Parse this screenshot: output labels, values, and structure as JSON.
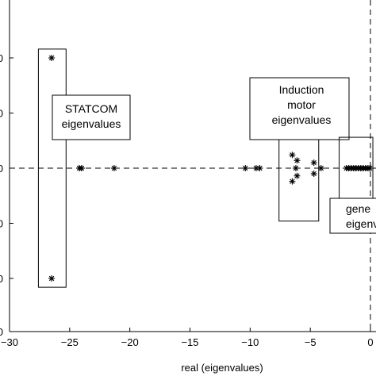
{
  "chart_data": {
    "type": "scatter",
    "title": "",
    "xlabel": "real (eigenvalues)",
    "ylabel": "",
    "xlim": [
      -30,
      0.2
    ],
    "ylim": [
      -1.3,
      1.3
    ],
    "x_ticks": [
      -30,
      -25,
      -20,
      -15,
      -10,
      -5,
      0
    ],
    "x_tick_labels": [
      "−30",
      "−25",
      "−20",
      "−15",
      "−10",
      "−5",
      "0"
    ],
    "y_ticks": [
      1.0,
      0.5,
      0.0,
      -0.5,
      -1.0
    ],
    "y_tick_labels": [
      "00",
      "00",
      "00",
      "00",
      "00"
    ],
    "marker": "asterisk",
    "grid": false,
    "reference_lines": {
      "horizontal_dashed_y": 0,
      "vertical_dashed_x": 0
    },
    "points": [
      {
        "x": -26.5,
        "y": 1.0
      },
      {
        "x": -26.5,
        "y": -1.0
      },
      {
        "x": -24.2,
        "y": 0
      },
      {
        "x": -24.0,
        "y": 0
      },
      {
        "x": -21.3,
        "y": 0
      },
      {
        "x": -10.4,
        "y": 0
      },
      {
        "x": -9.5,
        "y": 0
      },
      {
        "x": -9.2,
        "y": 0
      },
      {
        "x": -6.5,
        "y": 0.12
      },
      {
        "x": -6.1,
        "y": 0.07
      },
      {
        "x": -6.5,
        "y": -0.12
      },
      {
        "x": -6.1,
        "y": -0.07
      },
      {
        "x": -6.2,
        "y": 0
      },
      {
        "x": -4.7,
        "y": 0.05
      },
      {
        "x": -4.7,
        "y": -0.05
      },
      {
        "x": -4.1,
        "y": 0
      },
      {
        "x": -2.0,
        "y": 0
      },
      {
        "x": -1.8,
        "y": 0
      },
      {
        "x": -1.6,
        "y": 0
      },
      {
        "x": -1.4,
        "y": 0
      },
      {
        "x": -1.2,
        "y": 0
      },
      {
        "x": -1.0,
        "y": 0
      },
      {
        "x": -0.8,
        "y": 0
      },
      {
        "x": -0.6,
        "y": 0
      },
      {
        "x": -0.4,
        "y": 0
      },
      {
        "x": -0.2,
        "y": 0
      },
      {
        "x": -0.05,
        "y": 0
      }
    ],
    "annotations": [
      {
        "id": "statcom",
        "lines": [
          "STATCOM",
          "eigenvalues"
        ],
        "encloses": {
          "xmin": -27.6,
          "xmax": -25.3,
          "ymin": -1.08,
          "ymax": 1.08
        }
      },
      {
        "id": "induction",
        "lines": [
          "Induction",
          "motor",
          "eigenvalues"
        ],
        "encloses": {
          "xmin": -7.6,
          "xmax": -4.3,
          "ymin": -0.48,
          "ymax": 0.52
        }
      },
      {
        "id": "generator",
        "lines": [
          "gene",
          "eigenv"
        ],
        "encloses": {
          "xmin": -2.6,
          "xmax": 0.2,
          "ymin": -0.36,
          "ymax": 0.28
        }
      }
    ]
  }
}
